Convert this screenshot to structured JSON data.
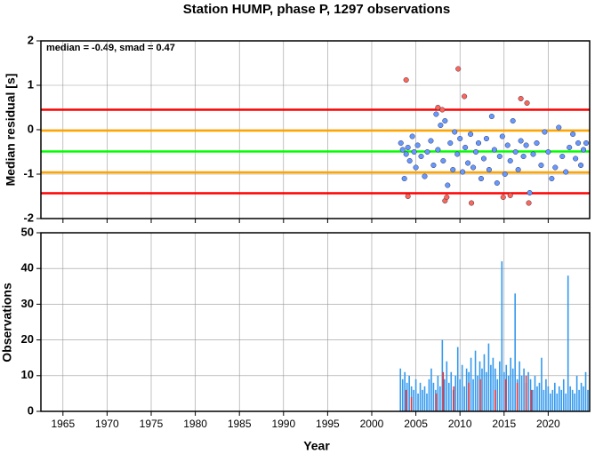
{
  "chart_data": [
    {
      "type": "scatter",
      "title": "Station HUMP, phase P, 1297 observations",
      "annotation": "median = -0.49, smad = 0.47",
      "ylabel": "Median residual [s]",
      "xlim": [
        1962.5,
        2024.7
      ],
      "ylim": [
        -2,
        2
      ],
      "yticks": [
        -2,
        -1,
        0,
        1,
        2
      ],
      "grid": true,
      "hlines": [
        {
          "value": 0.45,
          "color": "#ff0000"
        },
        {
          "value": -1.43,
          "color": "#ff0000"
        },
        {
          "value": -0.02,
          "color": "#ffa500"
        },
        {
          "value": -0.96,
          "color": "#ffa500"
        },
        {
          "value": -0.49,
          "color": "#00ff00"
        }
      ],
      "series": [
        {
          "color": "#6699ff",
          "x": [
            2003.3,
            2003.5,
            2003.7,
            2003.9,
            2004.1,
            2004.3,
            2004.6,
            2004.8,
            2005.0,
            2005.2,
            2005.6,
            2006.0,
            2006.3,
            2006.7,
            2007.0,
            2007.3,
            2007.5,
            2007.8,
            2008.1,
            2008.3,
            2008.6,
            2008.9,
            2009.2,
            2009.4,
            2009.7,
            2010.0,
            2010.3,
            2010.6,
            2010.9,
            2011.2,
            2011.5,
            2011.8,
            2012.1,
            2012.4,
            2012.7,
            2013.0,
            2013.3,
            2013.6,
            2013.9,
            2014.2,
            2014.5,
            2014.8,
            2015.1,
            2015.4,
            2015.7,
            2016.0,
            2016.3,
            2016.6,
            2016.9,
            2017.2,
            2017.5,
            2017.9,
            2018.3,
            2018.7,
            2019.2,
            2019.6,
            2020.0,
            2020.4,
            2020.8,
            2021.2,
            2021.6,
            2022.0,
            2022.4,
            2022.8,
            2023.1,
            2023.4,
            2023.7,
            2024.0,
            2024.3
          ],
          "values": [
            -0.3,
            -0.45,
            -1.1,
            -0.55,
            -0.4,
            -0.7,
            -0.15,
            -0.5,
            -0.85,
            -0.35,
            -0.6,
            -1.05,
            -0.5,
            -0.25,
            -0.8,
            0.35,
            -0.45,
            0.1,
            -0.7,
            0.2,
            -1.25,
            -0.3,
            -0.9,
            -0.05,
            -0.55,
            -0.2,
            -0.95,
            -0.4,
            -0.75,
            -0.1,
            -0.85,
            -0.5,
            -0.3,
            -1.1,
            -0.65,
            -0.2,
            -0.9,
            0.3,
            -0.45,
            -1.2,
            -0.6,
            -0.15,
            -1.0,
            -0.35,
            -0.7,
            0.2,
            -0.5,
            -0.9,
            -0.25,
            -0.6,
            -0.35,
            -1.42,
            -0.55,
            -0.3,
            -0.8,
            -0.05,
            -0.5,
            -1.1,
            -0.85,
            0.05,
            -0.6,
            -0.95,
            -0.4,
            -0.1,
            -0.65,
            -0.3,
            -0.8,
            -0.45,
            -0.3
          ]
        },
        {
          "color": "#ff6655",
          "x": [
            2003.9,
            2004.1,
            2007.5,
            2008.0,
            2008.3,
            2008.5,
            2009.8,
            2010.5,
            2011.3,
            2014.9,
            2015.7,
            2016.9,
            2017.6,
            2017.8
          ],
          "values": [
            1.12,
            -1.5,
            0.5,
            0.45,
            -1.6,
            -1.52,
            1.37,
            0.75,
            -1.65,
            -1.52,
            -1.48,
            0.7,
            0.6,
            -1.65
          ]
        }
      ]
    },
    {
      "type": "bar",
      "xlabel": "Year",
      "ylabel": "Observations",
      "xlim": [
        1962.5,
        2024.7
      ],
      "ylim": [
        0,
        50
      ],
      "yticks": [
        0,
        10,
        20,
        30,
        40,
        50
      ],
      "xticks": [
        1965,
        1970,
        1975,
        1980,
        1985,
        1990,
        1995,
        2000,
        2005,
        2010,
        2015,
        2020
      ],
      "grid": true,
      "series": [
        {
          "color": "#3399ee",
          "x": [
            2003.25,
            2003.5,
            2003.75,
            2004.0,
            2004.25,
            2004.5,
            2004.75,
            2005.0,
            2005.25,
            2005.5,
            2005.75,
            2006.0,
            2006.25,
            2006.5,
            2006.75,
            2007.0,
            2007.25,
            2007.5,
            2007.75,
            2008.0,
            2008.25,
            2008.5,
            2008.75,
            2009.0,
            2009.25,
            2009.5,
            2009.75,
            2010.0,
            2010.25,
            2010.5,
            2010.75,
            2011.0,
            2011.25,
            2011.5,
            2011.75,
            2012.0,
            2012.25,
            2012.5,
            2012.75,
            2013.0,
            2013.25,
            2013.5,
            2013.75,
            2014.0,
            2014.25,
            2014.5,
            2014.75,
            2015.0,
            2015.25,
            2015.5,
            2015.75,
            2016.0,
            2016.25,
            2016.5,
            2016.75,
            2017.0,
            2017.25,
            2017.5,
            2017.75,
            2018.0,
            2018.25,
            2018.5,
            2018.75,
            2019.0,
            2019.25,
            2019.5,
            2019.75,
            2020.0,
            2020.25,
            2020.5,
            2020.75,
            2021.0,
            2021.25,
            2021.5,
            2021.75,
            2022.0,
            2022.25,
            2022.5,
            2022.75,
            2023.0,
            2023.25,
            2023.5,
            2023.75,
            2024.0,
            2024.25,
            2024.5
          ],
          "values": [
            12,
            9,
            11,
            8,
            10,
            7,
            6,
            9,
            5,
            8,
            6,
            7,
            5,
            9,
            12,
            8,
            6,
            10,
            7,
            20,
            9,
            14,
            8,
            11,
            6,
            10,
            18,
            9,
            13,
            7,
            12,
            11,
            15,
            9,
            17,
            10,
            14,
            12,
            16,
            11,
            19,
            13,
            15,
            12,
            9,
            14,
            42,
            11,
            13,
            10,
            15,
            12,
            33,
            9,
            14,
            10,
            12,
            8,
            11,
            9,
            6,
            10,
            7,
            8,
            15,
            6,
            9,
            7,
            5,
            6,
            8,
            5,
            7,
            6,
            9,
            5,
            38,
            7,
            6,
            5,
            10,
            6,
            8,
            7,
            11,
            6
          ]
        },
        {
          "color": "#ee3333",
          "x": [
            2003.9,
            2004.5,
            2007.3,
            2008.1,
            2009.3,
            2011.0,
            2012.3,
            2014.0,
            2015.2,
            2016.5,
            2017.5,
            2018.1
          ],
          "values": [
            6,
            4,
            5,
            11,
            7,
            8,
            9,
            6,
            9,
            8,
            10,
            6
          ]
        }
      ]
    }
  ]
}
